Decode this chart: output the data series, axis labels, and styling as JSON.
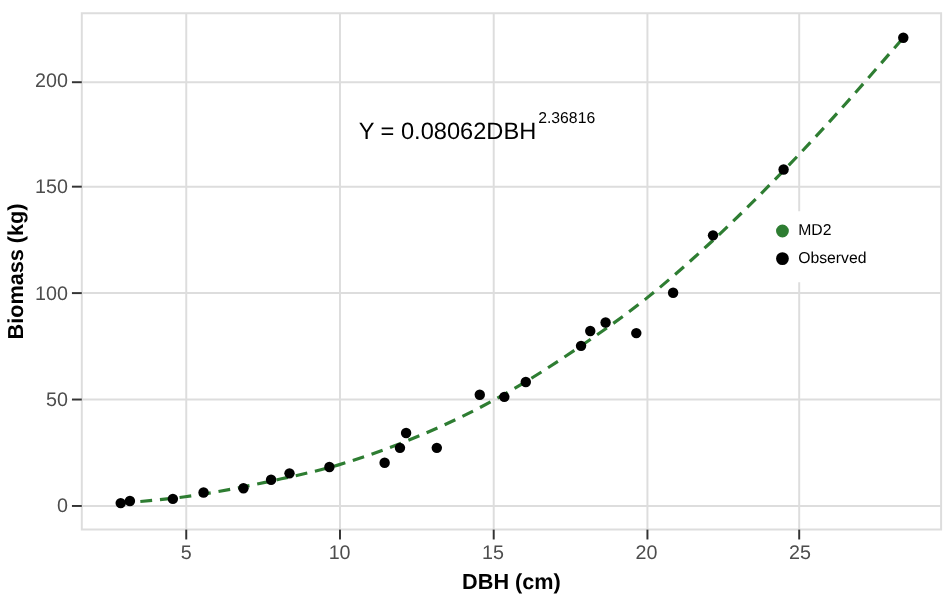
{
  "chart_data": {
    "type": "scatter",
    "xlabel": "DBH (cm)",
    "ylabel": "Biomass (kg)",
    "annotations": [
      "Y = 0.08062DBH$^{2.36816}$"
    ],
    "xlim": [
      1.6,
      29.6
    ],
    "ylim": [
      -11,
      232
    ],
    "xticks": [
      5,
      10,
      15,
      20,
      25
    ],
    "yticks": [
      0,
      50,
      100,
      150,
      200
    ],
    "grid": true,
    "legend": "right",
    "marker": "circle",
    "series": [
      {
        "name": "MD2",
        "type": "line",
        "marker": "none",
        "line_style": "dashed",
        "color": "#2e7d32",
        "x": [
          2.9,
          5,
          8,
          10,
          12,
          15,
          18,
          20,
          22,
          25,
          28.4
        ],
        "values": [
          1,
          4,
          12,
          19,
          29,
          49,
          76,
          97,
          122,
          165,
          220
        ]
      },
      {
        "name": "Observed",
        "color": "#000000",
        "x": [
          2.9,
          3.2,
          4.6,
          5.6,
          6.9,
          7.8,
          8.4,
          9.7,
          11.5,
          12.0,
          12.2,
          13.2,
          14.6,
          15.4,
          16.1,
          17.9,
          18.2,
          18.7,
          19.7,
          20.9,
          22.2,
          24.5,
          28.4
        ],
        "values": [
          1,
          2,
          3,
          6,
          8,
          12,
          15,
          18,
          20,
          27,
          34,
          27,
          52,
          51,
          58,
          75,
          82,
          86,
          81,
          100,
          127,
          158,
          220
        ]
      }
    ]
  }
}
